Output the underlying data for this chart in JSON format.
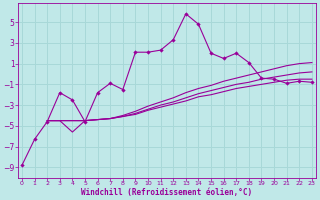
{
  "xlabel": "Windchill (Refroidissement éolien,°C)",
  "bg_color": "#c0e8e8",
  "grid_color": "#a8d8d8",
  "line_color": "#990099",
  "x_ticks": [
    0,
    1,
    2,
    3,
    4,
    5,
    6,
    7,
    8,
    9,
    10,
    11,
    12,
    13,
    14,
    15,
    16,
    17,
    18,
    19,
    20,
    21,
    22,
    23
  ],
  "y_ticks": [
    -9,
    -7,
    -5,
    -3,
    -1,
    1,
    3,
    5
  ],
  "ylim": [
    -10.0,
    6.8
  ],
  "xlim": [
    -0.3,
    23.3
  ],
  "line1_x": [
    0,
    1,
    2,
    3,
    4,
    5,
    6,
    7,
    8,
    9,
    10,
    11,
    12,
    13,
    14,
    15,
    16,
    17,
    18,
    19,
    20,
    21,
    22,
    23
  ],
  "line1_y": [
    -8.8,
    -6.3,
    -4.6,
    -1.8,
    -2.5,
    -4.6,
    -1.8,
    -0.9,
    -1.5,
    2.1,
    2.1,
    2.3,
    3.3,
    5.8,
    4.8,
    2.0,
    1.5,
    2.0,
    1.1,
    -0.4,
    -0.5,
    -0.9,
    -0.7,
    -0.8
  ],
  "line2_x": [
    2,
    3,
    4,
    5,
    6,
    7,
    8,
    9,
    10,
    11,
    12,
    13,
    14,
    15,
    16,
    17,
    18,
    19,
    20,
    21,
    22,
    23
  ],
  "line2_y": [
    -4.5,
    -4.5,
    -4.5,
    -4.5,
    -4.4,
    -4.3,
    -4.1,
    -3.9,
    -3.5,
    -3.2,
    -2.9,
    -2.6,
    -2.2,
    -2.0,
    -1.7,
    -1.4,
    -1.2,
    -1.0,
    -0.8,
    -0.6,
    -0.5,
    -0.5
  ],
  "line3_x": [
    2,
    3,
    4,
    5,
    6,
    7,
    8,
    9,
    10,
    11,
    12,
    13,
    14,
    15,
    16,
    17,
    18,
    19,
    20,
    21,
    22,
    23
  ],
  "line3_y": [
    -4.5,
    -4.5,
    -4.5,
    -4.5,
    -4.4,
    -4.3,
    -4.1,
    -3.8,
    -3.4,
    -3.0,
    -2.7,
    -2.3,
    -1.9,
    -1.6,
    -1.3,
    -1.0,
    -0.8,
    -0.5,
    -0.3,
    -0.1,
    0.1,
    0.2
  ],
  "line4_x": [
    2,
    3,
    4,
    5,
    6,
    7,
    8,
    9,
    10,
    11,
    12,
    13,
    14,
    15,
    16,
    17,
    18,
    19,
    20,
    21,
    22,
    23
  ],
  "line4_y": [
    -4.5,
    -4.5,
    -5.6,
    -4.5,
    -4.4,
    -4.3,
    -4.0,
    -3.6,
    -3.1,
    -2.7,
    -2.3,
    -1.8,
    -1.4,
    -1.1,
    -0.7,
    -0.4,
    -0.1,
    0.2,
    0.5,
    0.8,
    1.0,
    1.1
  ]
}
